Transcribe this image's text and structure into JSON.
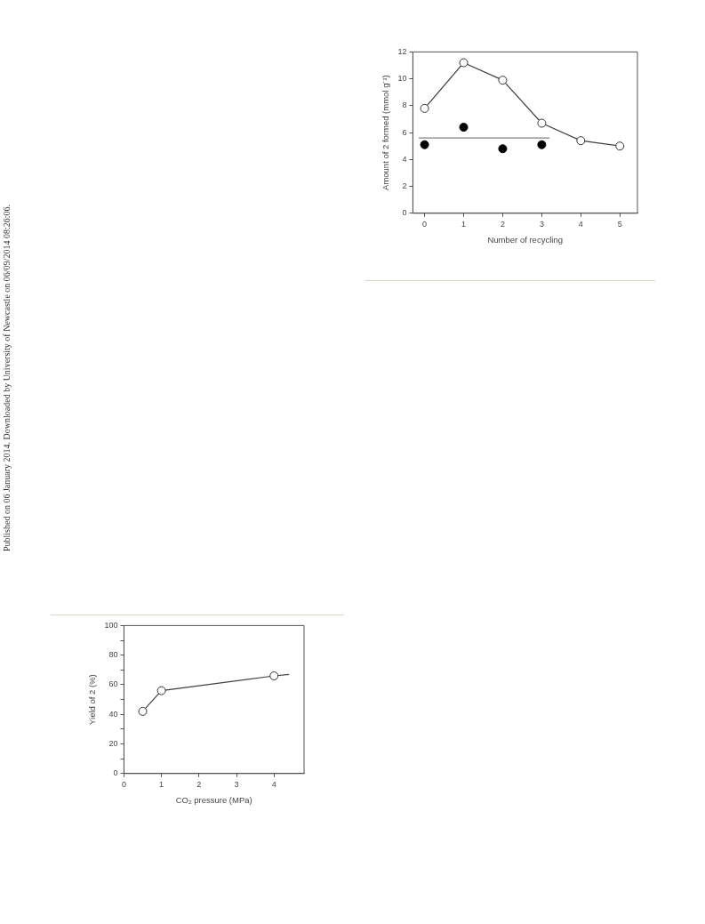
{
  "chart_data": [
    {
      "type": "line",
      "xlabel": "Number of recycling",
      "ylabel": "Amount of 2 formed (mmol g⁻¹)",
      "xlim": [
        -0.3,
        5.45
      ],
      "xticks": [
        0,
        1,
        2,
        3,
        4,
        5
      ],
      "ylim": [
        0,
        12
      ],
      "yticks": [
        0,
        2,
        4,
        6,
        8,
        10,
        12
      ],
      "grid": false,
      "legend": false,
      "marker": "circle",
      "annotations": [
        "Published on 06 January 2014. Downloaded by University of Newcastle on 06/09/2014 08:26:06."
      ],
      "series": [
        {
          "type": "line",
          "color": "#404040",
          "x": [
            0,
            1,
            2,
            3,
            4,
            5
          ],
          "values": [
            7.8,
            11.2,
            9.9,
            6.7,
            5.4,
            5.0
          ]
        },
        {
          "type": "scatter",
          "color": "#000000",
          "x": [
            0,
            1,
            2,
            3
          ],
          "values": [
            5.1,
            6.4,
            4.8,
            5.1
          ]
        },
        {
          "type": "line",
          "color": "#808080",
          "marker": "none",
          "x": [
            -0.15,
            3.2
          ],
          "values": [
            5.6,
            5.6
          ]
        }
      ]
    },
    {
      "type": "line",
      "xlabel": "CO₂ pressure (MPa)",
      "ylabel": "Yield of 2 (%)",
      "xlim": [
        0,
        4.8
      ],
      "xticks": [
        0,
        1,
        2,
        3,
        4
      ],
      "ylim": [
        0,
        100
      ],
      "yticks": [
        0,
        {
          "value": 10,
          "label": null
        },
        20,
        {
          "value": 30,
          "label": null
        },
        40,
        {
          "value": 50,
          "label": null
        },
        60,
        {
          "value": 70,
          "label": null
        },
        80,
        {
          "value": 90,
          "label": null
        },
        100
      ],
      "grid": false,
      "legend": false,
      "marker": "circle",
      "series": [
        {
          "type": "line",
          "color": "#404040",
          "x": [
            0.5,
            1,
            4
          ],
          "values": [
            42,
            56,
            66
          ]
        },
        {
          "type": "line",
          "color": "#404040",
          "marker": "none",
          "x": [
            4,
            4.4
          ],
          "values": [
            66,
            67
          ]
        }
      ]
    }
  ]
}
